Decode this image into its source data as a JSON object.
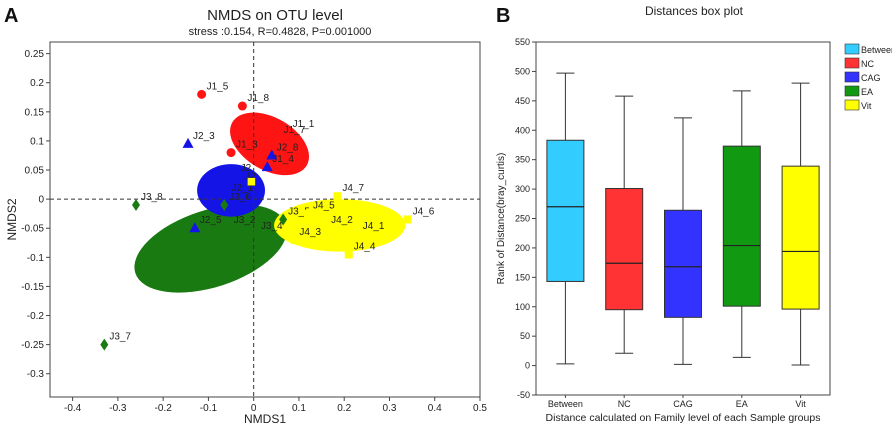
{
  "chart_data": [
    {
      "type": "scatter",
      "panel_label": "A",
      "title": "NMDS on OTU level",
      "subtitle": "stress :0.154, R=0.4828, P=0.001000",
      "xlabel": "NMDS1",
      "ylabel": "NMDS2",
      "xlim": [
        -0.45,
        0.5
      ],
      "ylim": [
        -0.34,
        0.27
      ],
      "x_ticks": [
        -0.4,
        -0.3,
        -0.2,
        -0.1,
        0,
        0.1,
        0.2,
        0.3,
        0.4,
        0.5
      ],
      "y_ticks": [
        0.25,
        0.2,
        0.15,
        0.1,
        0.05,
        0,
        -0.05,
        -0.1,
        -0.15,
        -0.2,
        -0.25,
        -0.3
      ],
      "x_tick_labels": [
        "-0.4",
        "-0.3",
        "-0.2",
        "-0.1",
        "0",
        "0.1",
        "0.2",
        "0.3",
        "0.4",
        "0.5"
      ],
      "y_tick_labels": [
        "0.25",
        "0.2",
        "0.15",
        "0.1",
        "0.05",
        "0",
        "-0.05",
        "-0.1",
        "-0.15",
        "-0.2",
        "-0.25",
        "-0.3"
      ],
      "reference_lines": {
        "x": 0,
        "y": 0,
        "style": "dashed"
      },
      "groups": [
        {
          "name": "EA",
          "color": "#1a7a12",
          "ellipse": {
            "cx": -0.095,
            "cy": -0.085,
            "rx": 0.175,
            "ry": 0.085,
            "angle_deg": 18
          }
        },
        {
          "name": "Vit",
          "color": "#ffff00",
          "ellipse": {
            "cx": 0.19,
            "cy": -0.045,
            "rx": 0.145,
            "ry": 0.058,
            "angle_deg": 0
          }
        },
        {
          "name": "CAG",
          "color": "#1414e6",
          "ellipse": {
            "cx": -0.05,
            "cy": 0.015,
            "rx": 0.075,
            "ry": 0.058,
            "angle_deg": 0
          }
        },
        {
          "name": "NC",
          "color": "#ff1414",
          "ellipse": {
            "cx": 0.035,
            "cy": 0.095,
            "rx": 0.095,
            "ry": 0.058,
            "angle_deg": -30
          }
        }
      ],
      "points": [
        {
          "label": "J1_5",
          "group": "NC",
          "shape": "circle",
          "x": -0.115,
          "y": 0.18
        },
        {
          "label": "J1_8",
          "group": "NC",
          "shape": "circle",
          "x": -0.025,
          "y": 0.16
        },
        {
          "label": "J1_1",
          "group": "NC",
          "shape": "circle",
          "x": 0.075,
          "y": 0.115
        },
        {
          "label": "J1_7",
          "group": "NC",
          "shape": "circle",
          "x": 0.055,
          "y": 0.105
        },
        {
          "label": "J1_3",
          "group": "NC",
          "shape": "circle",
          "x": -0.05,
          "y": 0.08
        },
        {
          "label": "J2_3",
          "group": "CAG",
          "shape": "triangle",
          "x": -0.145,
          "y": 0.095
        },
        {
          "label": "J2_8",
          "group": "CAG",
          "shape": "triangle",
          "x": 0.04,
          "y": 0.075
        },
        {
          "label": "J1_4",
          "group": "CAG",
          "shape": "triangle",
          "x": 0.03,
          "y": 0.055
        },
        {
          "label": "J2",
          "group": "CAG",
          "shape": "triangle",
          "x": -0.04,
          "y": 0.04
        },
        {
          "label": "J2",
          "group": "CAG",
          "shape": "triangle",
          "x": -0.03,
          "y": 0.025
        },
        {
          "label": "J2_1",
          "group": "CAG",
          "shape": "triangle",
          "x": -0.06,
          "y": 0.005
        },
        {
          "label": "J2_5",
          "group": "CAG",
          "shape": "triangle",
          "x": -0.13,
          "y": -0.05
        },
        {
          "label": "J3_8",
          "group": "EA",
          "shape": "diamond",
          "x": -0.26,
          "y": -0.01
        },
        {
          "label": "J3_6",
          "group": "EA",
          "shape": "diamond",
          "x": -0.065,
          "y": -0.01
        },
        {
          "label": "J3_2",
          "group": "EA",
          "shape": "diamond",
          "x": -0.055,
          "y": -0.05
        },
        {
          "label": "J3_4",
          "group": "EA",
          "shape": "diamond",
          "x": 0.005,
          "y": -0.06
        },
        {
          "label": "J3_5",
          "group": "EA",
          "shape": "diamond",
          "x": 0.065,
          "y": -0.035
        },
        {
          "label": "J3_7",
          "group": "EA",
          "shape": "diamond",
          "x": -0.33,
          "y": -0.25
        },
        {
          "label": "J4_7",
          "group": "Vit",
          "shape": "square",
          "x": 0.185,
          "y": 0.005
        },
        {
          "label": "J4_5",
          "group": "Vit",
          "shape": "square",
          "x": 0.12,
          "y": -0.025
        },
        {
          "label": "J4_2",
          "group": "Vit",
          "shape": "square",
          "x": 0.16,
          "y": -0.05
        },
        {
          "label": "J4_3",
          "group": "Vit",
          "shape": "square",
          "x": 0.09,
          "y": -0.07
        },
        {
          "label": "J4_1",
          "group": "Vit",
          "shape": "square",
          "x": 0.23,
          "y": -0.06
        },
        {
          "label": "J4_4",
          "group": "Vit",
          "shape": "square",
          "x": 0.21,
          "y": -0.095
        },
        {
          "label": "J4_6",
          "group": "Vit",
          "shape": "square",
          "x": 0.34,
          "y": -0.035
        },
        {
          "label": "",
          "group": "Vit",
          "shape": "square",
          "x": -0.005,
          "y": 0.03
        }
      ]
    },
    {
      "type": "box",
      "panel_label": "B",
      "title": "Distances box plot",
      "xlabel": "Distance calculated on Family level of each Sample groups",
      "ylabel": "Rank of Distance(bray_curtis)",
      "ylim": [
        -50,
        550
      ],
      "y_ticks": [
        -50,
        0,
        50,
        100,
        150,
        200,
        250,
        300,
        350,
        400,
        450,
        500,
        550
      ],
      "y_tick_labels": [
        "-50",
        "0",
        "50",
        "100",
        "150",
        "200",
        "250",
        "300",
        "350",
        "400",
        "450",
        "500",
        "550"
      ],
      "categories": [
        "Between",
        "NC",
        "CAG",
        "EA",
        "Vit"
      ],
      "legend": {
        "position": "right",
        "entries": [
          "Between",
          "NC",
          "CAG",
          "EA",
          "Vit"
        ]
      },
      "boxes": [
        {
          "name": "Between",
          "color": "#33ccff",
          "min": 3,
          "q1": 143,
          "median": 270,
          "q3": 383,
          "max": 497
        },
        {
          "name": "NC",
          "color": "#ff3333",
          "min": 21,
          "q1": 95,
          "median": 174,
          "q3": 301,
          "max": 458
        },
        {
          "name": "CAG",
          "color": "#3333ff",
          "min": 2,
          "q1": 82,
          "median": 168,
          "q3": 264,
          "max": 421
        },
        {
          "name": "EA",
          "color": "#129912",
          "min": 14,
          "q1": 101,
          "median": 204,
          "q3": 373,
          "max": 467
        },
        {
          "name": "Vit",
          "color": "#ffff00",
          "min": 1,
          "q1": 96,
          "median": 194,
          "q3": 339,
          "max": 480
        }
      ]
    }
  ]
}
